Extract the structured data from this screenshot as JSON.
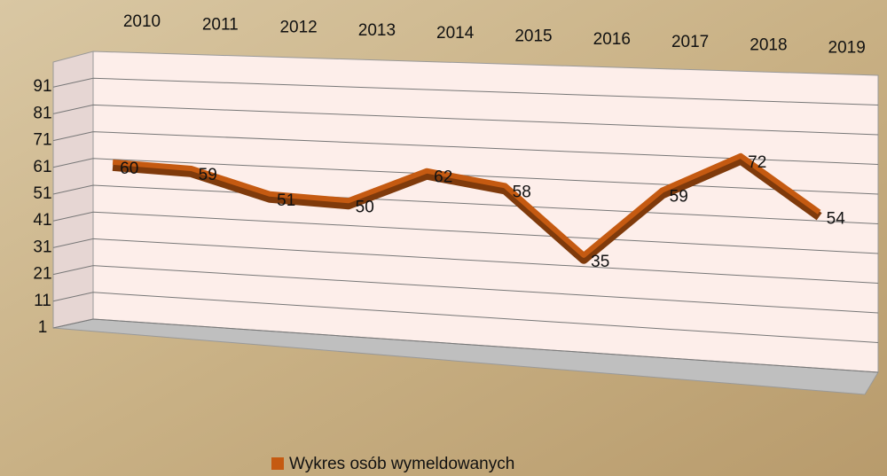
{
  "chart_data": {
    "type": "line",
    "categories": [
      "2010",
      "2011",
      "2012",
      "2013",
      "2014",
      "2015",
      "2016",
      "2017",
      "2018",
      "2019"
    ],
    "series": [
      {
        "name": "Wykres osób wymeldowanych",
        "color": "#c55a11",
        "values": [
          60,
          59,
          51,
          50,
          62,
          58,
          35,
          59,
          72,
          54
        ]
      }
    ],
    "ylim": [
      1,
      101
    ],
    "yticks": [
      1,
      11,
      21,
      31,
      41,
      51,
      61,
      71,
      81,
      91
    ],
    "grid": true
  }
}
